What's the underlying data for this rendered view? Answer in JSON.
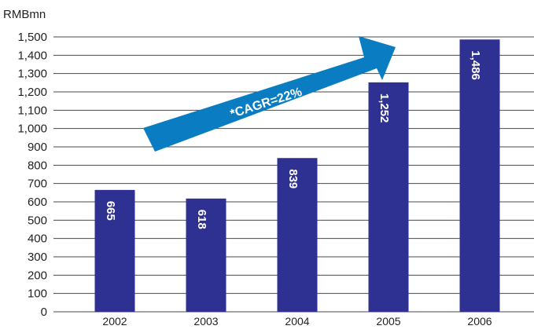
{
  "chart_data": {
    "type": "bar",
    "unit_label": "RMBmn",
    "categories": [
      "2002",
      "2003",
      "2004",
      "2005",
      "2006"
    ],
    "values": [
      665,
      618,
      839,
      1252,
      1486
    ],
    "value_labels": [
      "665",
      "618",
      "839",
      "1,252",
      "1,486"
    ],
    "ylim": [
      0,
      1500
    ],
    "yticks": [
      0,
      100,
      200,
      300,
      400,
      500,
      600,
      700,
      800,
      900,
      1000,
      1100,
      1200,
      1300,
      1400,
      1500
    ],
    "ytick_labels": [
      "0",
      "100",
      "200",
      "300",
      "400",
      "500",
      "600",
      "700",
      "800",
      "900",
      "1,000",
      "1,100",
      "1,200",
      "1,300",
      "1,400",
      "1,500"
    ],
    "grid": true,
    "annotation": "*CAGR=22%",
    "colors": {
      "bar": "#2e3192",
      "arrow": "#0a7cc1",
      "grid": "#4a4a4a"
    }
  }
}
